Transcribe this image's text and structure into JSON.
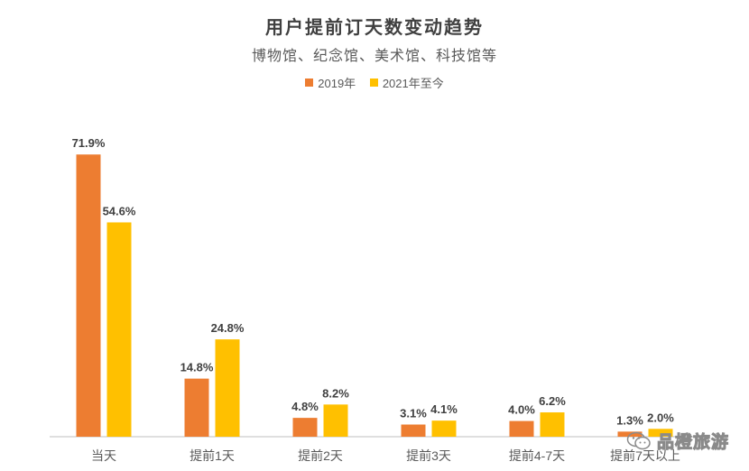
{
  "header": {
    "title": "用户提前订天数变动趋势",
    "subtitle": "博物馆、纪念馆、美术馆、科技馆等"
  },
  "colors": {
    "series_2019": "#ED7D31",
    "series_2021": "#FFC000",
    "axis": "#BFBFBF",
    "label_text": "#404040"
  },
  "watermark": {
    "icon": "wechat-icon",
    "text": "品橙旅游"
  },
  "chart_data": {
    "type": "bar",
    "title": "用户提前订天数变动趋势",
    "subtitle": "博物馆、纪念馆、美术馆、科技馆等",
    "categories": [
      "当天",
      "提前1天",
      "提前2天",
      "提前3天",
      "提前4-7天",
      "提前7天以上"
    ],
    "series": [
      {
        "name": "2019年",
        "values": [
          71.9,
          14.8,
          4.8,
          3.1,
          4.0,
          1.3
        ],
        "labels": [
          "71.9%",
          "14.8%",
          "4.8%",
          "3.1%",
          "4.0%",
          "1.3%"
        ],
        "color": "#ED7D31"
      },
      {
        "name": "2021年至今",
        "values": [
          54.6,
          24.8,
          8.2,
          4.1,
          6.2,
          2.0
        ],
        "labels": [
          "54.6%",
          "24.8%",
          "8.2%",
          "4.1%",
          "6.2%",
          "2.0%"
        ],
        "color": "#FFC000"
      }
    ],
    "xlabel": "",
    "ylabel": "",
    "ylim": [
      0,
      80
    ],
    "grid": false,
    "legend": "top-center"
  }
}
